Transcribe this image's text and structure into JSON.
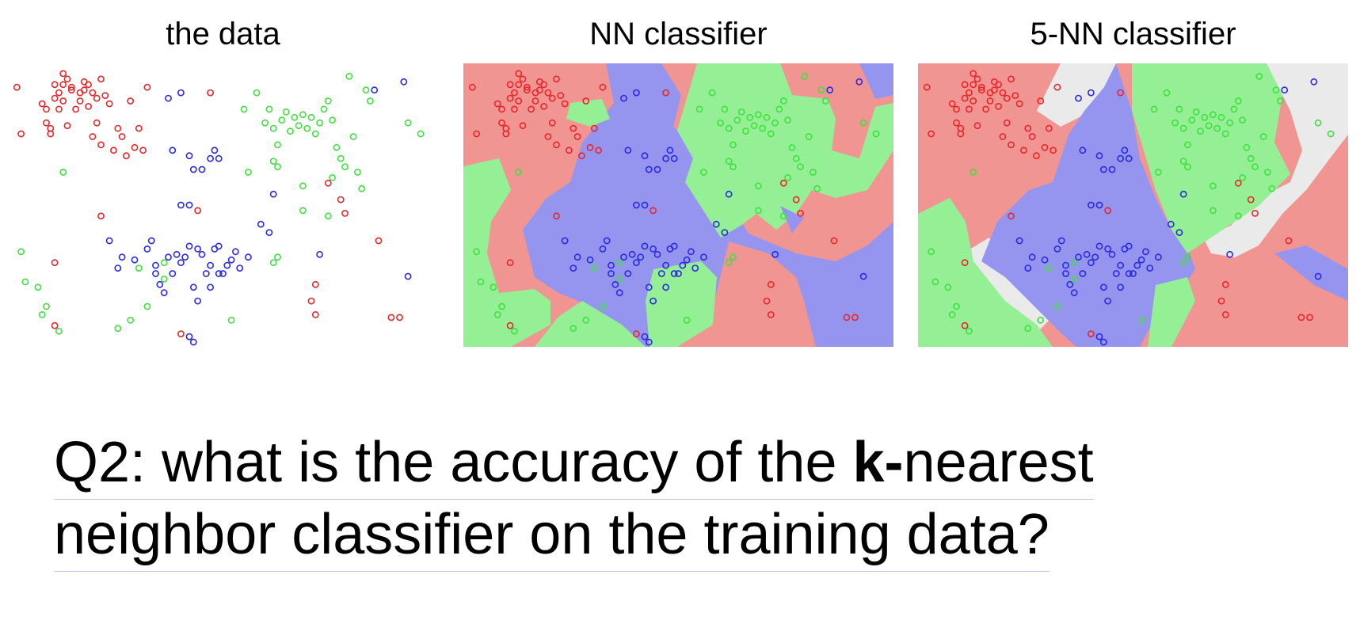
{
  "panels": [
    {
      "id": "data",
      "title": "the data"
    },
    {
      "id": "nn",
      "title": "NN classifier"
    },
    {
      "id": "5nn",
      "title": "5-NN classifier"
    }
  ],
  "question": {
    "prefix": "Q2: what is the accuracy of the ",
    "bold": "k-",
    "suffix": "nearest",
    "line2": "neighbor classifier on the training data?"
  },
  "colors": {
    "red_point": "#e8262a",
    "green_point": "#40e040",
    "blue_point": "#2a2ae0",
    "red_region": "#f19593",
    "green_region": "#95f095",
    "blue_region": "#9595f0",
    "undecided_region": "#eaeaea"
  },
  "chart_data": {
    "type": "scatter",
    "xlim": [
      0,
      100
    ],
    "ylim": [
      0,
      100
    ],
    "series": [
      {
        "class": "red",
        "points": [
          [
            1,
            93
          ],
          [
            2,
            76
          ],
          [
            7,
            87
          ],
          [
            8,
            85
          ],
          [
            8,
            80
          ],
          [
            9,
            78
          ],
          [
            9,
            76
          ],
          [
            10,
            94
          ],
          [
            10,
            89
          ],
          [
            11,
            91
          ],
          [
            11,
            85
          ],
          [
            12,
            98
          ],
          [
            12,
            94
          ],
          [
            12,
            88
          ],
          [
            13,
            96
          ],
          [
            13,
            79
          ],
          [
            14,
            93
          ],
          [
            14,
            92
          ],
          [
            15,
            85
          ],
          [
            16,
            91
          ],
          [
            16,
            88
          ],
          [
            17,
            95
          ],
          [
            17,
            92
          ],
          [
            18,
            94
          ],
          [
            18,
            86
          ],
          [
            19,
            91
          ],
          [
            19,
            75
          ],
          [
            20,
            89
          ],
          [
            20,
            80
          ],
          [
            21,
            96
          ],
          [
            21,
            72
          ],
          [
            22,
            90
          ],
          [
            23,
            87
          ],
          [
            24,
            70
          ],
          [
            25,
            78
          ],
          [
            26,
            75
          ],
          [
            27,
            68
          ],
          [
            28,
            88
          ],
          [
            29,
            71
          ],
          [
            30,
            78
          ],
          [
            31,
            70
          ],
          [
            32,
            93
          ],
          [
            44,
            48
          ],
          [
            47,
            91
          ],
          [
            75,
            58
          ],
          [
            78,
            52
          ],
          [
            79,
            47
          ],
          [
            87,
            37
          ],
          [
            92,
            9
          ],
          [
            10,
            29
          ],
          [
            10,
            6
          ],
          [
            21,
            46
          ],
          [
            40,
            3
          ],
          [
            72,
            21
          ],
          [
            72,
            10
          ],
          [
            71,
            15
          ],
          [
            90,
            9
          ]
        ]
      },
      {
        "class": "green",
        "points": [
          [
            55,
            85
          ],
          [
            58,
            91
          ],
          [
            60,
            80
          ],
          [
            61,
            85
          ],
          [
            62,
            78
          ],
          [
            63,
            72
          ],
          [
            64,
            81
          ],
          [
            65,
            84
          ],
          [
            66,
            77
          ],
          [
            67,
            82
          ],
          [
            68,
            79
          ],
          [
            69,
            83
          ],
          [
            70,
            78
          ],
          [
            71,
            82
          ],
          [
            72,
            76
          ],
          [
            73,
            80
          ],
          [
            74,
            85
          ],
          [
            75,
            88
          ],
          [
            76,
            81
          ],
          [
            77,
            71
          ],
          [
            78,
            67
          ],
          [
            79,
            64
          ],
          [
            80,
            97
          ],
          [
            81,
            75
          ],
          [
            82,
            62
          ],
          [
            83,
            56
          ],
          [
            84,
            92
          ],
          [
            85,
            88
          ],
          [
            62,
            66
          ],
          [
            63,
            64
          ],
          [
            76,
            60
          ],
          [
            69,
            48
          ],
          [
            75,
            46
          ],
          [
            94,
            80
          ],
          [
            97,
            76
          ],
          [
            12,
            62
          ],
          [
            2,
            33
          ],
          [
            3,
            22
          ],
          [
            6,
            20
          ],
          [
            7,
            10
          ],
          [
            8,
            13
          ],
          [
            11,
            4
          ],
          [
            25,
            5
          ],
          [
            28,
            8
          ],
          [
            32,
            13
          ],
          [
            30,
            27
          ],
          [
            36,
            23
          ],
          [
            36,
            29
          ],
          [
            52,
            8
          ],
          [
            62,
            29
          ],
          [
            63,
            31
          ],
          [
            69,
            57
          ],
          [
            56,
            62
          ]
        ]
      },
      {
        "class": "blue",
        "points": [
          [
            37,
            89
          ],
          [
            40,
            91
          ],
          [
            38,
            70
          ],
          [
            42,
            68
          ],
          [
            43,
            63
          ],
          [
            45,
            63
          ],
          [
            47,
            67
          ],
          [
            48,
            70
          ],
          [
            49,
            67
          ],
          [
            40,
            50
          ],
          [
            42,
            50
          ],
          [
            23,
            37
          ],
          [
            25,
            27
          ],
          [
            26,
            31
          ],
          [
            29,
            30
          ],
          [
            32,
            34
          ],
          [
            33,
            37
          ],
          [
            34,
            28
          ],
          [
            34,
            25
          ],
          [
            35,
            21
          ],
          [
            36,
            18
          ],
          [
            37,
            31
          ],
          [
            38,
            25
          ],
          [
            39,
            32
          ],
          [
            40,
            29
          ],
          [
            41,
            31
          ],
          [
            42,
            35
          ],
          [
            43,
            20
          ],
          [
            44,
            34
          ],
          [
            45,
            32
          ],
          [
            46,
            25
          ],
          [
            47,
            28
          ],
          [
            48,
            34
          ],
          [
            49,
            25
          ],
          [
            50,
            25
          ],
          [
            51,
            28
          ],
          [
            52,
            30
          ],
          [
            53,
            33
          ],
          [
            54,
            27
          ],
          [
            56,
            31
          ],
          [
            49,
            35
          ],
          [
            47,
            20
          ],
          [
            44,
            15
          ],
          [
            42,
            2
          ],
          [
            43,
            0
          ],
          [
            59,
            43
          ],
          [
            61,
            40
          ],
          [
            62,
            54
          ],
          [
            73,
            32
          ],
          [
            93,
            95
          ],
          [
            86,
            92
          ],
          [
            94,
            24
          ]
        ]
      }
    ]
  }
}
